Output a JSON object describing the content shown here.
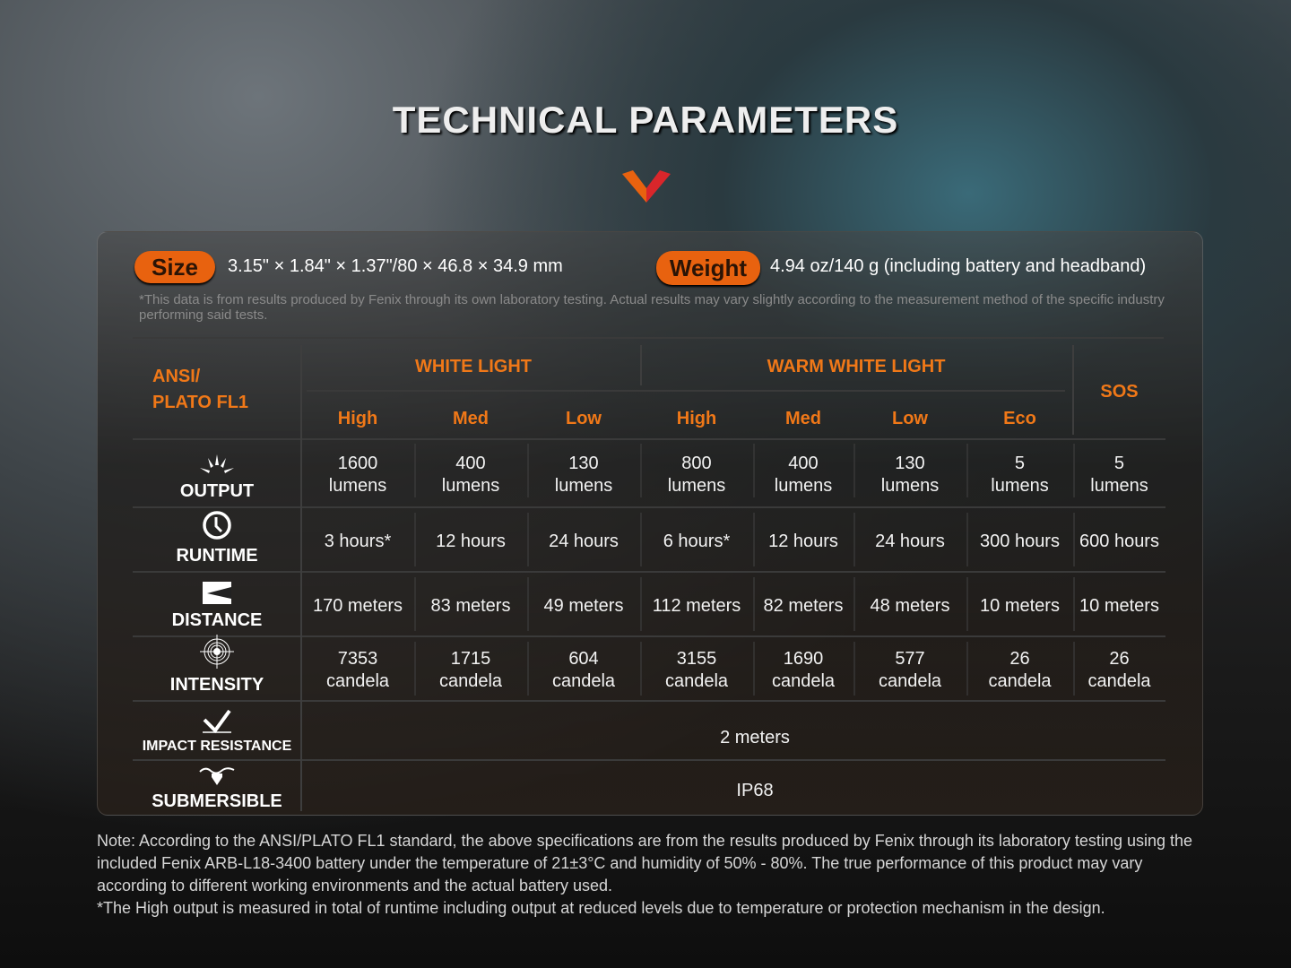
{
  "title": "TECHNICAL PARAMETERS",
  "size": {
    "label": "Size",
    "value": "3.15\" × 1.84\" × 1.37\"/80 × 46.8 × 34.9 mm"
  },
  "weight": {
    "label": "Weight",
    "value": "4.94 oz/140 g (including battery and headband)"
  },
  "disclaimer": "*This data is from results produced by Fenix through its own laboratory testing. Actual results may vary slightly according to the measurement method of the specific industry performing said tests.",
  "table": {
    "standard": [
      "ANSI/",
      "PLATO FL1"
    ],
    "groups": [
      "WHITE LIGHT",
      "WARM WHITE LIGHT",
      "SOS"
    ],
    "modes": [
      "High",
      "Med",
      "Low",
      "High",
      "Med",
      "Low",
      "Eco"
    ],
    "rows": [
      {
        "label": "OUTPUT",
        "icon": "sun-burst-icon",
        "values": [
          "1600\nlumens",
          "400\nlumens",
          "130\nlumens",
          "800\nlumens",
          "400\nlumens",
          "130\nlumens",
          "5\nlumens",
          "5\nlumens"
        ]
      },
      {
        "label": "RUNTIME",
        "icon": "clock-icon",
        "values": [
          "3 hours*",
          "12 hours",
          "24 hours",
          "6 hours*",
          "12 hours",
          "24 hours",
          "300 hours",
          "600 hours"
        ]
      },
      {
        "label": "DISTANCE",
        "icon": "beam-distance-icon",
        "values": [
          "170 meters",
          "83 meters",
          "49 meters",
          "112 meters",
          "82 meters",
          "48 meters",
          "10 meters",
          "10 meters"
        ]
      },
      {
        "label": "INTENSITY",
        "icon": "target-icon",
        "values": [
          "7353\ncandela",
          "1715\ncandela",
          "604\ncandela",
          "3155\ncandela",
          "1690\ncandela",
          "577\ncandela",
          "26\ncandela",
          "26\ncandela"
        ]
      }
    ],
    "impact": {
      "label": "IMPACT RESISTANCE",
      "value": "2 meters"
    },
    "submersible": {
      "label": "SUBMERSIBLE",
      "value": "IP68"
    }
  },
  "notes": [
    "Note: According to the ANSI/PLATO FL1 standard, the above specifications are from the results produced by Fenix through its laboratory testing using the included Fenix ARB-L18-3400 battery under the temperature of 21±3°C and humidity of 50% - 80%. The true performance of this product may vary according to different working environments and the actual battery used.",
    "*The High output is measured in total of runtime including output at reduced levels due to temperature or protection mechanism in the design."
  ],
  "colors": {
    "accent": "#e8620f",
    "header_text": "#f07818"
  }
}
